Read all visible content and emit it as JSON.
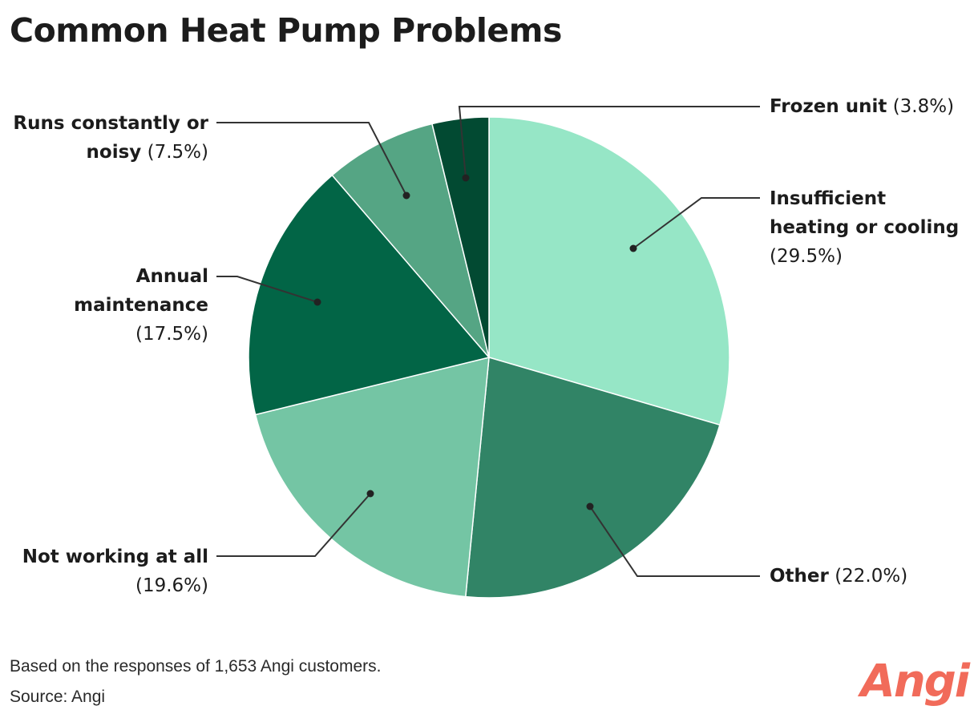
{
  "header": {
    "title": "Common Heat Pump Problems"
  },
  "chart_data": {
    "type": "pie",
    "title": "Common Heat Pump Problems",
    "start_angle_deg": 0,
    "direction": "clockwise",
    "slices": [
      {
        "name": "Insufficient heating or cooling",
        "value": 29.5,
        "pct_label": "(29.5%)",
        "color": "#96e6c6"
      },
      {
        "name": "Other",
        "value": 22.0,
        "pct_label": "(22.0%)",
        "color": "#318466"
      },
      {
        "name": "Not working at all",
        "value": 19.6,
        "pct_label": "(19.6%)",
        "color": "#74c5a4"
      },
      {
        "name": "Annual maintenance",
        "value": 17.5,
        "pct_label": "(17.5%)",
        "color": "#026546"
      },
      {
        "name": "Runs constantly or noisy",
        "value": 7.5,
        "pct_label": "(7.5%)",
        "color": "#55a584"
      },
      {
        "name": "Frozen unit",
        "value": 3.8,
        "pct_label": "(3.8%)",
        "color": "#024a32"
      }
    ],
    "legend": "none"
  },
  "labels": {
    "insufficient": {
      "line1": "Insufficient",
      "line2": "heating or cooling",
      "pct": "(29.5%)"
    },
    "other": {
      "name": "Other",
      "pct": "(22.0%)"
    },
    "not_working": {
      "name": "Not working at all",
      "pct": "(19.6%)"
    },
    "annual": {
      "line1": "Annual",
      "line2": "maintenance",
      "pct": "(17.5%)"
    },
    "runs": {
      "line1": "Runs constantly or",
      "line2": "noisy",
      "pct": "(7.5%)"
    },
    "frozen": {
      "name": "Frozen unit",
      "pct": "(3.8%)"
    }
  },
  "footer": {
    "note": "Based on the responses of 1,653 Angi customers.",
    "source": "Source: Angi",
    "logo": "Angi"
  },
  "colors": {
    "leader_line": "#333333",
    "brand": "#f16b5a"
  }
}
